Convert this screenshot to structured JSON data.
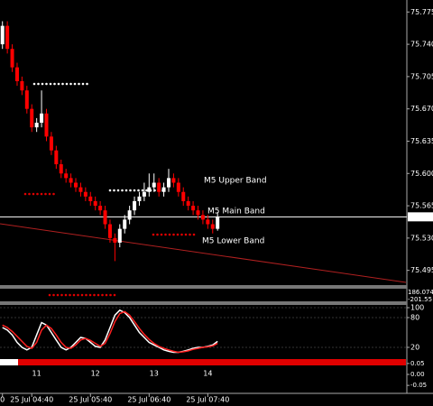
{
  "chart_data": [
    {
      "type": "candlestick",
      "categories": [
        "0",
        null,
        null,
        null,
        null,
        null,
        "25 Jul 04:40",
        null,
        null,
        null,
        null,
        null,
        null,
        null,
        null,
        null,
        null,
        null,
        "25 Jul 05:40",
        null,
        null,
        null,
        null,
        null,
        null,
        null,
        null,
        null,
        null,
        null,
        "25 Jul 06:40",
        null,
        null,
        null,
        null,
        null,
        null,
        null,
        null,
        null,
        null,
        null,
        "25 Jul 07:40",
        null,
        null
      ],
      "open": [
        75.74,
        75.76,
        75.735,
        75.715,
        75.7,
        75.69,
        75.67,
        75.65,
        75.655,
        75.665,
        75.64,
        75.625,
        75.61,
        75.6,
        75.595,
        75.59,
        75.585,
        75.58,
        75.575,
        75.57,
        75.565,
        75.56,
        75.545,
        75.53,
        75.525,
        75.54,
        75.55,
        75.56,
        75.57,
        75.575,
        75.58,
        75.585,
        75.59,
        75.58,
        75.585,
        75.595,
        75.59,
        75.58,
        75.57,
        75.565,
        75.56,
        75.555,
        75.55,
        75.545,
        75.54
      ],
      "high": [
        75.765,
        75.765,
        75.74,
        75.72,
        75.705,
        75.695,
        75.675,
        75.66,
        75.69,
        75.67,
        75.645,
        75.63,
        75.615,
        75.605,
        75.6,
        75.595,
        75.59,
        75.585,
        75.58,
        75.575,
        75.57,
        75.565,
        75.55,
        75.535,
        75.545,
        75.555,
        75.565,
        75.575,
        75.58,
        75.59,
        75.6,
        75.6,
        75.595,
        75.59,
        75.605,
        75.6,
        75.595,
        75.585,
        75.575,
        75.57,
        75.565,
        75.56,
        75.555,
        75.55,
        75.558
      ],
      "low": [
        75.735,
        75.73,
        75.71,
        75.695,
        75.685,
        75.665,
        75.645,
        75.645,
        75.65,
        75.635,
        75.62,
        75.605,
        75.595,
        75.59,
        75.585,
        75.58,
        75.575,
        75.57,
        75.565,
        75.56,
        75.555,
        75.54,
        75.525,
        75.505,
        75.52,
        75.535,
        75.545,
        75.555,
        75.565,
        75.57,
        75.575,
        75.58,
        75.575,
        75.575,
        75.58,
        75.585,
        75.575,
        75.565,
        75.56,
        75.555,
        75.55,
        75.545,
        75.54,
        75.535,
        75.538
      ],
      "close": [
        75.76,
        75.735,
        75.715,
        75.7,
        75.69,
        75.67,
        75.65,
        75.655,
        75.665,
        75.64,
        75.625,
        75.61,
        75.6,
        75.595,
        75.59,
        75.585,
        75.58,
        75.575,
        75.57,
        75.565,
        75.56,
        75.545,
        75.53,
        75.525,
        75.54,
        75.55,
        75.56,
        75.57,
        75.575,
        75.58,
        75.585,
        75.59,
        75.58,
        75.585,
        75.595,
        75.59,
        75.58,
        75.57,
        75.565,
        75.56,
        75.555,
        75.55,
        75.545,
        75.54,
        75.553
      ],
      "up_color": "#ffffff",
      "down_color": "#ff0000",
      "ylim": [
        75.48,
        75.788
      ],
      "yticks": [
        75.775,
        {
          "value": 75.74,
          "label": "75.740"
        },
        75.705,
        {
          "value": 75.67,
          "label": "75.670"
        },
        75.635,
        {
          "value": 75.6,
          "label": "75.600"
        },
        75.565,
        {
          "value": 75.53,
          "label": "75.530"
        },
        75.495
      ],
      "last_price": 75.553,
      "annotations": [
        {
          "text": "M5 Upper Band",
          "color": "#3ab4d0"
        },
        {
          "text": "M5 Main Band",
          "color": "#ffffff"
        },
        {
          "text": "M5 Lower Band",
          "color": "#e8e040"
        }
      ]
    },
    {
      "type": "line",
      "series": [
        {
          "color": "#ffffff",
          "values": [
            60,
            55,
            45,
            30,
            20,
            15,
            20,
            45,
            70,
            65,
            50,
            35,
            20,
            15,
            20,
            30,
            40,
            38,
            30,
            22,
            20,
            35,
            60,
            85,
            95,
            90,
            80,
            65,
            50,
            40,
            30,
            25,
            20,
            15,
            12,
            10,
            10,
            12,
            15,
            18,
            20,
            20,
            22,
            25,
            32
          ]
        },
        {
          "color": "#ff2020",
          "values": [
            65,
            60,
            52,
            42,
            32,
            22,
            18,
            30,
            55,
            65,
            58,
            45,
            30,
            20,
            18,
            25,
            35,
            38,
            34,
            28,
            22,
            28,
            48,
            72,
            88,
            92,
            85,
            72,
            58,
            46,
            36,
            28,
            22,
            18,
            15,
            12,
            10,
            11,
            13,
            16,
            18,
            20,
            21,
            23,
            28
          ]
        }
      ],
      "ylim": [
        0,
        100
      ],
      "yticks": [
        100,
        80,
        20
      ]
    }
  ],
  "side_labels": [
    "186.074",
    "-201.55"
  ],
  "period_labels": [
    "11",
    "12",
    "13",
    "14"
  ],
  "histogram_axis": {
    "ylim": [
      -0.07,
      0.07
    ],
    "yticks": [
      0.05,
      {
        "value": 0,
        "label": "0.00"
      },
      -0.05
    ]
  }
}
